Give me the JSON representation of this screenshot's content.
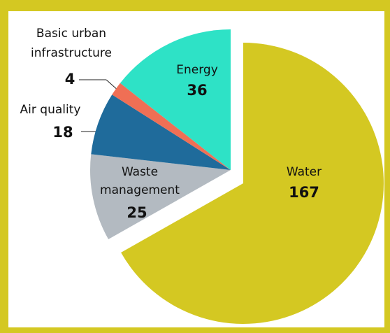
{
  "chart_data": {
    "type": "pie",
    "categories": [
      "Water",
      "Waste management",
      "Air quality",
      "Basic urban infrastructure",
      "Energy"
    ],
    "values": [
      167,
      25,
      18,
      4,
      36
    ],
    "colors": [
      "#d4c822",
      "#b3bac1",
      "#1f6b9b",
      "#ef6f55",
      "#2ee2c6"
    ],
    "explode": [
      "Water"
    ]
  }
}
